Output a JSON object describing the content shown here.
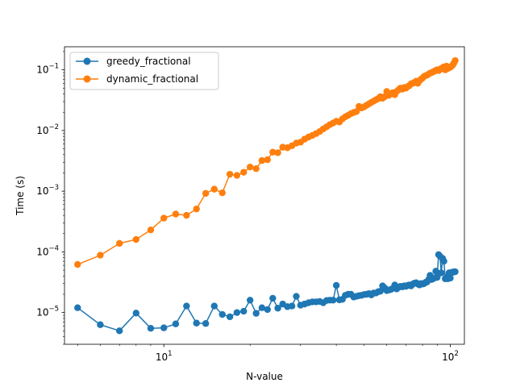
{
  "chart_data": {
    "type": "line",
    "xscale": "log",
    "yscale": "log",
    "xlabel": "N-value",
    "ylabel": "Time (s)",
    "xlim": [
      4.5,
      112
    ],
    "ylim": [
      3e-06,
      0.24
    ],
    "xticks": [
      {
        "value": 10,
        "base": "10",
        "exp": "1"
      },
      {
        "value": 100,
        "base": "10",
        "exp": "2"
      }
    ],
    "yticks": [
      {
        "value": 1e-05,
        "base": "10",
        "exp": "−5"
      },
      {
        "value": 0.0001,
        "base": "10",
        "exp": "−4"
      },
      {
        "value": 0.001,
        "base": "10",
        "exp": "−3"
      },
      {
        "value": 0.01,
        "base": "10",
        "exp": "−2"
      },
      {
        "value": 0.1,
        "base": "10",
        "exp": "−1"
      }
    ],
    "grid": false,
    "legend_position": "top-left",
    "series": [
      {
        "name": "greedy_fractional",
        "color": "#1f77b4",
        "x": [
          5,
          6,
          7,
          8,
          9,
          10,
          11,
          12,
          13,
          14,
          15,
          16,
          17,
          18,
          19,
          20,
          21,
          22,
          23,
          24,
          25,
          26,
          27,
          28,
          29,
          30,
          31,
          32,
          33,
          34,
          35,
          36,
          37,
          38,
          39,
          40,
          41,
          42,
          43,
          44,
          45,
          46,
          47,
          48,
          49,
          50,
          51,
          52,
          53,
          54,
          55,
          56,
          57,
          58,
          59,
          60,
          61,
          62,
          63,
          64,
          65,
          66,
          67,
          68,
          69,
          70,
          71,
          72,
          73,
          74,
          75,
          76,
          77,
          78,
          79,
          80,
          81,
          82,
          83,
          84,
          85,
          86,
          87,
          88,
          89,
          90,
          91,
          92,
          93,
          94,
          95,
          96,
          97,
          98,
          99,
          100,
          101,
          102,
          103,
          104
        ],
        "y": [
          1.2e-05,
          6.3e-06,
          5e-06,
          9.8e-06,
          5.5e-06,
          5.6e-06,
          6.5e-06,
          1.28e-05,
          6.7e-06,
          6.6e-06,
          1.28e-05,
          9.3e-06,
          8.5e-06,
          1e-05,
          1.05e-05,
          1.6e-05,
          9.7e-06,
          1.2e-05,
          1.12e-05,
          1.72e-05,
          1.18e-05,
          1.38e-05,
          1.25e-05,
          1.28e-05,
          1.85e-05,
          1.32e-05,
          1.38e-05,
          1.45e-05,
          1.5e-05,
          1.5e-05,
          1.52e-05,
          1.45e-05,
          1.58e-05,
          1.6e-05,
          1.6e-05,
          2.8e-05,
          1.62e-05,
          1.65e-05,
          1.92e-05,
          2e-05,
          2e-05,
          1.8e-05,
          1.85e-05,
          1.9e-05,
          1.92e-05,
          1.98e-05,
          2e-05,
          2.05e-05,
          1.95e-05,
          2.1e-05,
          2.1e-05,
          2.2e-05,
          2.25e-05,
          2.75e-05,
          2.55e-05,
          2.3e-05,
          2.35e-05,
          2.4e-05,
          2.5e-05,
          2.85e-05,
          2.45e-05,
          2.6e-05,
          2.7e-05,
          2.65e-05,
          2.75e-05,
          2.7e-05,
          2.8e-05,
          2.85e-05,
          2.75e-05,
          2.95e-05,
          3.05e-05,
          3.1e-05,
          2.95e-05,
          2.85e-05,
          3e-05,
          2.95e-05,
          3e-05,
          3.15e-05,
          3.2e-05,
          3.5e-05,
          4.1e-05,
          3.5e-05,
          3.6e-05,
          3.7e-05,
          4.8e-05,
          3.8e-05,
          9e-05,
          8.5e-05,
          4.5e-05,
          7.8e-05,
          7e-05,
          3.6e-05,
          3.8e-05,
          3.6e-05,
          4.5e-05,
          3.7e-05,
          4.6e-05,
          4.6e-05,
          4.7e-05,
          4.7e-05
        ],
        "marker": "circle"
      },
      {
        "name": "dynamic_fractional",
        "color": "#ff7f0e",
        "x": [
          5,
          6,
          7,
          8,
          9,
          10,
          11,
          12,
          13,
          14,
          15,
          16,
          17,
          18,
          19,
          20,
          21,
          22,
          23,
          24,
          25,
          26,
          27,
          28,
          29,
          30,
          31,
          32,
          33,
          34,
          35,
          36,
          37,
          38,
          39,
          40,
          41,
          42,
          43,
          44,
          45,
          46,
          47,
          48,
          49,
          50,
          51,
          52,
          53,
          54,
          55,
          56,
          57,
          58,
          59,
          60,
          61,
          62,
          63,
          64,
          65,
          66,
          67,
          68,
          69,
          70,
          71,
          72,
          73,
          74,
          75,
          76,
          77,
          78,
          79,
          80,
          81,
          82,
          83,
          84,
          85,
          86,
          87,
          88,
          89,
          90,
          91,
          92,
          93,
          94,
          95,
          96,
          97,
          98,
          99,
          100,
          101,
          102,
          103,
          104
        ],
        "y": [
          6.2e-05,
          8.8e-05,
          0.000138,
          0.00016,
          0.00023,
          0.00036,
          0.00042,
          0.0004,
          0.00051,
          0.00092,
          0.00108,
          0.00094,
          0.0019,
          0.00182,
          0.00205,
          0.0025,
          0.00235,
          0.0032,
          0.0033,
          0.0044,
          0.0043,
          0.0053,
          0.0052,
          0.0056,
          0.0062,
          0.0064,
          0.0072,
          0.0078,
          0.0083,
          0.0089,
          0.0096,
          0.0106,
          0.0115,
          0.0125,
          0.0133,
          0.0142,
          0.0138,
          0.0155,
          0.0168,
          0.0178,
          0.019,
          0.0198,
          0.0205,
          0.025,
          0.0235,
          0.0245,
          0.026,
          0.0275,
          0.029,
          0.0305,
          0.032,
          0.0335,
          0.036,
          0.034,
          0.036,
          0.044,
          0.038,
          0.04,
          0.042,
          0.039,
          0.044,
          0.047,
          0.05,
          0.048,
          0.051,
          0.05,
          0.053,
          0.055,
          0.059,
          0.06,
          0.062,
          0.065,
          0.06,
          0.066,
          0.07,
          0.073,
          0.078,
          0.08,
          0.082,
          0.085,
          0.088,
          0.09,
          0.092,
          0.095,
          0.098,
          0.1,
          0.097,
          0.102,
          0.105,
          0.108,
          0.112,
          0.1,
          0.115,
          0.105,
          0.11,
          0.11,
          0.115,
          0.12,
          0.13,
          0.142
        ],
        "marker": "circle"
      }
    ]
  }
}
